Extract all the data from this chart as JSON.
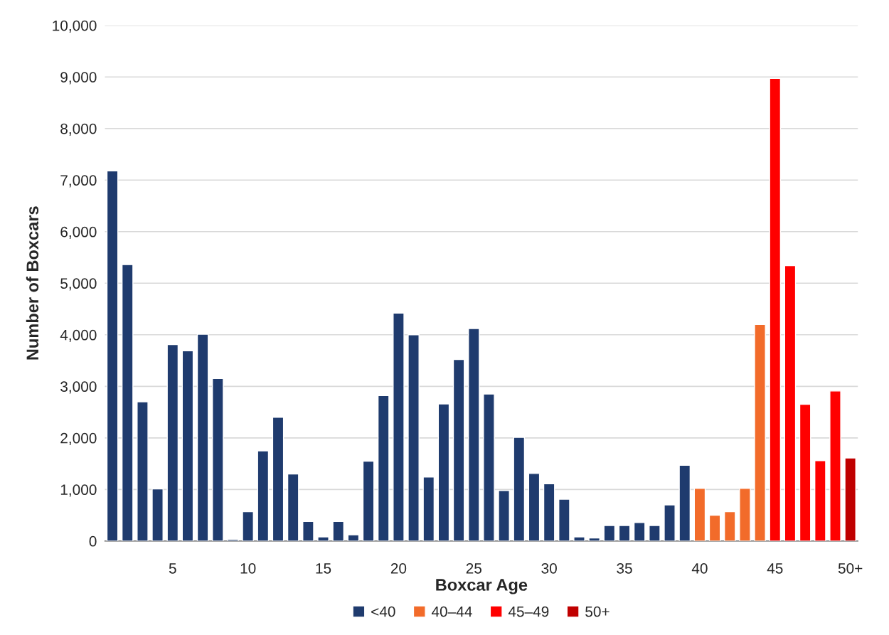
{
  "chart_data": {
    "type": "bar",
    "xlabel": "Boxcar Age",
    "ylabel": "Number of Boxcars",
    "categories": [
      null,
      null,
      null,
      null,
      "5",
      null,
      null,
      null,
      null,
      "10",
      null,
      null,
      null,
      null,
      "15",
      null,
      null,
      null,
      null,
      "20",
      null,
      null,
      null,
      null,
      "25",
      null,
      null,
      null,
      null,
      "30",
      null,
      null,
      null,
      null,
      "35",
      null,
      null,
      null,
      null,
      "40",
      null,
      null,
      null,
      null,
      "45",
      null,
      null,
      null,
      null,
      "50+"
    ],
    "series": [
      {
        "name": "<40",
        "color": "#1f3b6e",
        "values": [
          7180,
          5360,
          2700,
          1010,
          3810,
          3690,
          4010,
          3150,
          30,
          570,
          1750,
          2400,
          1300,
          380,
          80,
          380,
          120,
          1550,
          2820,
          4420,
          4000,
          1240,
          2660,
          3520,
          4120,
          2850,
          980,
          2010,
          1310,
          1110,
          810,
          80,
          60,
          300,
          300,
          360,
          300,
          700,
          1470,
          null,
          null,
          null,
          null,
          null,
          null,
          null,
          null,
          null,
          null,
          null
        ]
      },
      {
        "name": "40–44",
        "color": "#f26b2a",
        "values": [
          null,
          null,
          null,
          null,
          null,
          null,
          null,
          null,
          null,
          null,
          null,
          null,
          null,
          null,
          null,
          null,
          null,
          null,
          null,
          null,
          null,
          null,
          null,
          null,
          null,
          null,
          null,
          null,
          null,
          null,
          null,
          null,
          null,
          null,
          null,
          null,
          null,
          null,
          null,
          1020,
          500,
          570,
          1020,
          4200,
          null,
          null,
          null,
          null,
          null,
          null
        ]
      },
      {
        "name": "45–49",
        "color": "#ff0000",
        "values": [
          null,
          null,
          null,
          null,
          null,
          null,
          null,
          null,
          null,
          null,
          null,
          null,
          null,
          null,
          null,
          null,
          null,
          null,
          null,
          null,
          null,
          null,
          null,
          null,
          null,
          null,
          null,
          null,
          null,
          null,
          null,
          null,
          null,
          null,
          null,
          null,
          null,
          null,
          null,
          null,
          null,
          null,
          null,
          null,
          8970,
          5340,
          2650,
          1560,
          2910,
          null
        ]
      },
      {
        "name": "50+",
        "color": "#c00000",
        "values": [
          null,
          null,
          null,
          null,
          null,
          null,
          null,
          null,
          null,
          null,
          null,
          null,
          null,
          null,
          null,
          null,
          null,
          null,
          null,
          null,
          null,
          null,
          null,
          null,
          null,
          null,
          null,
          null,
          null,
          null,
          null,
          null,
          null,
          null,
          null,
          null,
          null,
          null,
          null,
          null,
          null,
          null,
          null,
          null,
          null,
          null,
          null,
          null,
          null,
          1610
        ]
      }
    ],
    "ylim": [
      0,
      10000
    ],
    "yticks": [
      0,
      {
        "value": 1000,
        "label": "1,000"
      },
      {
        "value": 2000,
        "label": "2,000"
      },
      {
        "value": 3000,
        "label": "3,000"
      },
      {
        "value": 4000,
        "label": "4,000"
      },
      {
        "value": 5000,
        "label": "5,000"
      },
      {
        "value": 6000,
        "label": "6,000"
      },
      {
        "value": 7000,
        "label": "7,000"
      },
      {
        "value": 8000,
        "label": "8,000"
      },
      {
        "value": 9000,
        "label": "9,000"
      },
      {
        "value": 10000,
        "label": "10,000"
      }
    ],
    "grid": "y",
    "legend": "bottom"
  }
}
